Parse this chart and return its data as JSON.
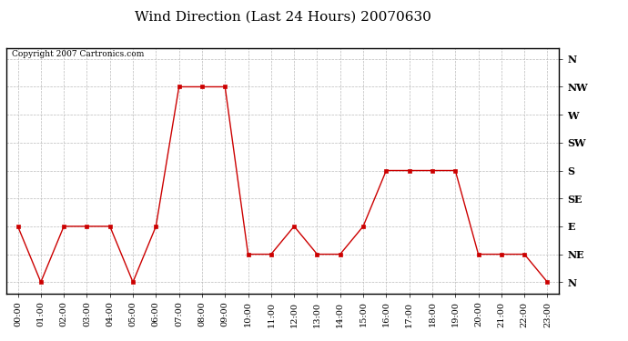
{
  "title": "Wind Direction (Last 24 Hours) 20070630",
  "copyright": "Copyright 2007 Cartronics.com",
  "x_labels": [
    "00:00",
    "01:00",
    "02:00",
    "03:00",
    "04:00",
    "05:00",
    "06:00",
    "07:00",
    "08:00",
    "09:00",
    "10:00",
    "11:00",
    "12:00",
    "13:00",
    "14:00",
    "15:00",
    "16:00",
    "17:00",
    "18:00",
    "19:00",
    "20:00",
    "21:00",
    "22:00",
    "23:00"
  ],
  "y_labels": [
    "N",
    "NE",
    "E",
    "SE",
    "S",
    "SW",
    "W",
    "NW",
    "N"
  ],
  "y_values": [
    0,
    1,
    2,
    3,
    4,
    5,
    6,
    7,
    8
  ],
  "data": [
    2,
    0,
    2,
    2,
    2,
    0,
    2,
    7,
    7,
    7,
    1,
    1,
    2,
    1,
    1,
    2,
    4,
    4,
    4,
    4,
    1,
    1,
    1,
    0
  ],
  "line_color": "#cc0000",
  "marker": "s",
  "marker_size": 2.5,
  "bg_color": "#ffffff",
  "grid_color": "#bbbbbb",
  "title_fontsize": 11,
  "copyright_fontsize": 6.5,
  "tick_fontsize": 7,
  "ytick_fontsize": 8
}
